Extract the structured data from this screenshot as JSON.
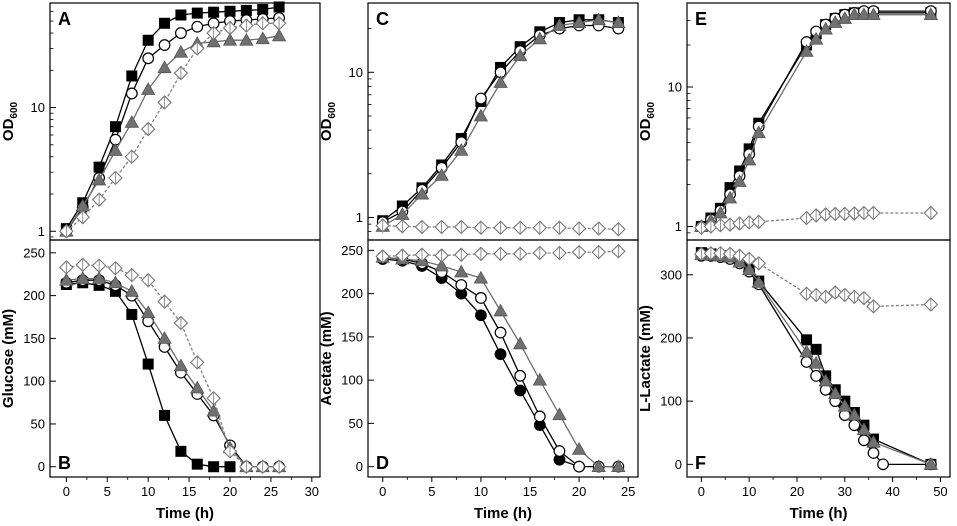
{
  "chart_data": [
    {
      "type": "line",
      "panel": "A",
      "yscale": "log",
      "ylabel": "OD",
      "ylabel_sub": "600",
      "xlim": [
        -2,
        31
      ],
      "ylim": [
        0.85,
        70
      ],
      "yticks": [
        1,
        10
      ],
      "ytick_labels": [
        "1",
        "10"
      ],
      "series": [
        {
          "name": "filled square",
          "marker": "square-filled",
          "x": [
            0,
            2,
            4,
            6,
            8,
            10,
            12,
            14,
            16,
            18,
            20,
            22,
            24,
            26
          ],
          "y": [
            1.05,
            1.7,
            3.3,
            7.0,
            18,
            35,
            48,
            56,
            58,
            59,
            60,
            61,
            62,
            65
          ]
        },
        {
          "name": "open circle",
          "marker": "circle-open",
          "x": [
            0,
            2,
            4,
            6,
            8,
            10,
            12,
            14,
            16,
            18,
            20,
            22,
            24,
            26
          ],
          "y": [
            1.0,
            1.55,
            2.7,
            5.5,
            13,
            25,
            32,
            40,
            45,
            48,
            50,
            51,
            52,
            53
          ]
        },
        {
          "name": "gray triangle",
          "marker": "triangle-gray",
          "x": [
            0,
            2,
            4,
            6,
            8,
            10,
            12,
            14,
            16,
            18,
            20,
            22,
            24,
            26
          ],
          "y": [
            1.0,
            1.6,
            2.6,
            4.5,
            7.6,
            14,
            21,
            28,
            33,
            34,
            35,
            35,
            36,
            38
          ]
        },
        {
          "name": "open diamond",
          "marker": "diamond-open",
          "x": [
            0,
            2,
            4,
            6,
            8,
            10,
            12,
            14,
            16,
            18,
            20,
            22,
            24,
            26
          ],
          "y": [
            1.0,
            1.3,
            1.8,
            2.7,
            4.0,
            6.7,
            11,
            19,
            30,
            40,
            44,
            46,
            48,
            48
          ]
        }
      ]
    },
    {
      "type": "line",
      "panel": "B",
      "ylabel": "Glucose (mM)",
      "xlabel": "Time (h)",
      "xlim": [
        -2,
        31
      ],
      "ylim": [
        -12,
        265
      ],
      "yticks": [
        0,
        50,
        100,
        150,
        200,
        250
      ],
      "ytick_labels": [
        "0",
        "50",
        "100",
        "150",
        "200",
        "250"
      ],
      "xticks": [
        0,
        5,
        10,
        15,
        20,
        25,
        30
      ],
      "xtick_labels": [
        "0",
        "5",
        "10",
        "15",
        "20",
        "25",
        "30"
      ],
      "series": [
        {
          "name": "filled square",
          "marker": "square-filled",
          "x": [
            0,
            2,
            4,
            6,
            8,
            10,
            12,
            14,
            16,
            18,
            20
          ],
          "y": [
            213,
            215,
            212,
            205,
            178,
            120,
            60,
            18,
            3,
            0,
            0
          ]
        },
        {
          "name": "open circle",
          "marker": "circle-open",
          "x": [
            0,
            2,
            4,
            6,
            8,
            10,
            12,
            14,
            16,
            18,
            20,
            22,
            24,
            26
          ],
          "y": [
            215,
            218,
            218,
            212,
            200,
            170,
            140,
            110,
            85,
            60,
            25,
            0,
            0,
            0
          ]
        },
        {
          "name": "gray triangle",
          "marker": "triangle-gray",
          "x": [
            0,
            2,
            4,
            6,
            8,
            10,
            12,
            14,
            16,
            18,
            20,
            22,
            24,
            26
          ],
          "y": [
            218,
            220,
            220,
            215,
            205,
            180,
            150,
            118,
            92,
            65,
            22,
            0,
            0,
            0
          ]
        },
        {
          "name": "open diamond",
          "marker": "diamond-open",
          "x": [
            0,
            2,
            4,
            6,
            8,
            10,
            12,
            14,
            16,
            18,
            20,
            22,
            24,
            26
          ],
          "y": [
            233,
            236,
            235,
            232,
            224,
            218,
            193,
            168,
            122,
            80,
            18,
            0,
            0,
            0
          ]
        }
      ]
    },
    {
      "type": "line",
      "panel": "C",
      "yscale": "log",
      "ylabel": "OD",
      "ylabel_sub": "600",
      "xlim": [
        -1.5,
        26
      ],
      "ylim": [
        0.7,
        30
      ],
      "yticks": [
        1,
        10
      ],
      "ytick_labels": [
        "1",
        "10"
      ],
      "series": [
        {
          "name": "filled square",
          "marker": "square-filled",
          "x": [
            0,
            2,
            4,
            6,
            8,
            10,
            12,
            14,
            16,
            18,
            20,
            22,
            24
          ],
          "y": [
            0.95,
            1.2,
            1.6,
            2.3,
            3.5,
            6.3,
            10.8,
            15,
            19,
            22,
            23,
            23,
            22
          ]
        },
        {
          "name": "open circle",
          "marker": "circle-open",
          "x": [
            0,
            2,
            4,
            6,
            8,
            10,
            12,
            14,
            16,
            18,
            20,
            22,
            24
          ],
          "y": [
            0.93,
            1.1,
            1.55,
            2.2,
            3.3,
            6.6,
            10,
            14,
            18,
            20,
            21,
            21,
            20
          ]
        },
        {
          "name": "gray triangle",
          "marker": "triangle-gray",
          "x": [
            0,
            2,
            4,
            6,
            8,
            10,
            12,
            14,
            16,
            18,
            20,
            22,
            24
          ],
          "y": [
            0.87,
            1.05,
            1.45,
            1.95,
            2.9,
            5.0,
            8.5,
            13,
            17,
            21,
            22,
            23,
            22
          ]
        },
        {
          "name": "open diamond",
          "marker": "diamond-open",
          "x": [
            0,
            2,
            4,
            6,
            8,
            10,
            12,
            14,
            16,
            18,
            20,
            22,
            24
          ],
          "y": [
            0.88,
            0.87,
            0.86,
            0.86,
            0.86,
            0.85,
            0.85,
            0.85,
            0.85,
            0.85,
            0.84,
            0.84,
            0.83
          ]
        }
      ]
    },
    {
      "type": "line",
      "panel": "D",
      "ylabel": "Acetate (mM)",
      "xlabel": "Time (h)",
      "xlim": [
        -1.5,
        26
      ],
      "ylim": [
        -12,
        262
      ],
      "yticks": [
        0,
        50,
        100,
        150,
        200,
        250
      ],
      "ytick_labels": [
        "0",
        "50",
        "100",
        "150",
        "200",
        "250"
      ],
      "xticks": [
        0,
        5,
        10,
        15,
        20,
        25
      ],
      "xtick_labels": [
        "0",
        "5",
        "10",
        "15",
        "20",
        "25"
      ],
      "series": [
        {
          "name": "filled circle",
          "marker": "circle-filled",
          "x": [
            0,
            2,
            4,
            6,
            8,
            10,
            12,
            14,
            16,
            18,
            20
          ],
          "y": [
            240,
            238,
            232,
            218,
            200,
            175,
            130,
            88,
            48,
            8,
            0
          ]
        },
        {
          "name": "open circle",
          "marker": "circle-open",
          "x": [
            0,
            2,
            4,
            6,
            8,
            10,
            12,
            14,
            16,
            18,
            20,
            22,
            24
          ],
          "y": [
            242,
            240,
            235,
            225,
            210,
            195,
            155,
            105,
            58,
            18,
            0,
            0,
            0
          ]
        },
        {
          "name": "gray triangle",
          "marker": "triangle-gray",
          "x": [
            0,
            2,
            4,
            6,
            8,
            10,
            12,
            14,
            16,
            18,
            20,
            22,
            24
          ],
          "y": [
            242,
            240,
            238,
            232,
            225,
            218,
            180,
            142,
            100,
            60,
            20,
            0,
            0
          ]
        },
        {
          "name": "open diamond",
          "marker": "diamond-open",
          "x": [
            0,
            2,
            4,
            6,
            8,
            10,
            12,
            14,
            16,
            18,
            20,
            22,
            24
          ],
          "y": [
            243,
            244,
            245,
            244,
            245,
            246,
            246,
            246,
            247,
            247,
            248,
            248,
            249
          ]
        }
      ]
    },
    {
      "type": "line",
      "panel": "E",
      "yscale": "log",
      "ylabel": "OD",
      "ylabel_sub": "600",
      "xlim": [
        -3,
        52
      ],
      "ylim": [
        0.8,
        40
      ],
      "yticks": [
        1,
        10
      ],
      "ytick_labels": [
        "1",
        "10"
      ],
      "series": [
        {
          "name": "filled square",
          "marker": "square-filled",
          "x": [
            0,
            2,
            4,
            6,
            8,
            10,
            12,
            22,
            24,
            26,
            28,
            30,
            32,
            34,
            36,
            48
          ],
          "y": [
            1.0,
            1.15,
            1.35,
            1.9,
            2.5,
            3.6,
            5.5,
            20,
            24,
            28,
            31,
            33,
            34,
            34,
            34,
            34
          ]
        },
        {
          "name": "open circle",
          "marker": "circle-open",
          "x": [
            0,
            2,
            4,
            6,
            8,
            10,
            12,
            22,
            24,
            26,
            28,
            30,
            32,
            34,
            36,
            48
          ],
          "y": [
            1.0,
            1.12,
            1.3,
            1.7,
            2.3,
            3.3,
            5.2,
            21,
            25,
            28,
            31,
            33,
            34,
            35,
            35,
            35
          ]
        },
        {
          "name": "gray triangle",
          "marker": "triangle-gray",
          "x": [
            0,
            2,
            4,
            6,
            8,
            10,
            12,
            22,
            24,
            26,
            28,
            30,
            32,
            34,
            36,
            48
          ],
          "y": [
            1.0,
            1.1,
            1.25,
            1.6,
            2.1,
            3.0,
            4.7,
            18,
            22,
            26,
            29,
            31,
            33,
            33,
            33,
            33
          ]
        },
        {
          "name": "open diamond",
          "marker": "diamond-open",
          "x": [
            0,
            2,
            4,
            6,
            8,
            10,
            12,
            22,
            24,
            26,
            28,
            30,
            32,
            34,
            36,
            48
          ],
          "y": [
            0.98,
            1.0,
            1.02,
            1.03,
            1.05,
            1.07,
            1.08,
            1.15,
            1.2,
            1.22,
            1.23,
            1.23,
            1.24,
            1.25,
            1.25,
            1.25
          ]
        }
      ]
    },
    {
      "type": "line",
      "panel": "F",
      "ylabel": "L-Lactate (mM)",
      "xlabel": "Time (h)",
      "xlim": [
        -3,
        52
      ],
      "ylim": [
        -20,
        355
      ],
      "yticks": [
        0,
        100,
        200,
        300
      ],
      "ytick_labels": [
        "0",
        "100",
        "200",
        "300"
      ],
      "xticks": [
        0,
        10,
        20,
        30,
        40,
        50
      ],
      "xtick_labels": [
        "0",
        "10",
        "20",
        "30",
        "40",
        "50"
      ],
      "series": [
        {
          "name": "filled square",
          "marker": "square-filled",
          "x": [
            0,
            2,
            4,
            6,
            8,
            10,
            12,
            22,
            24,
            26,
            28,
            30,
            32,
            34,
            36,
            48
          ],
          "y": [
            335,
            333,
            330,
            328,
            322,
            312,
            290,
            197,
            182,
            140,
            118,
            100,
            82,
            62,
            40,
            0
          ]
        },
        {
          "name": "open circle",
          "marker": "circle-open",
          "x": [
            0,
            2,
            4,
            6,
            8,
            10,
            12,
            22,
            24,
            26,
            28,
            30,
            32,
            34,
            36,
            38,
            48
          ],
          "y": [
            330,
            330,
            328,
            325,
            318,
            305,
            285,
            162,
            140,
            118,
            100,
            78,
            62,
            38,
            18,
            0,
            0
          ]
        },
        {
          "name": "gray triangle",
          "marker": "triangle-gray",
          "x": [
            0,
            2,
            4,
            6,
            8,
            10,
            12,
            22,
            24,
            26,
            28,
            30,
            32,
            34,
            36,
            48
          ],
          "y": [
            332,
            331,
            330,
            328,
            320,
            308,
            288,
            178,
            160,
            132,
            112,
            92,
            78,
            55,
            35,
            0
          ]
        },
        {
          "name": "open diamond",
          "marker": "diamond-open",
          "x": [
            0,
            2,
            4,
            6,
            8,
            10,
            12,
            22,
            24,
            26,
            28,
            30,
            32,
            34,
            36,
            48
          ],
          "y": [
            333,
            334,
            334,
            333,
            330,
            325,
            318,
            270,
            268,
            265,
            272,
            268,
            265,
            263,
            250,
            253
          ]
        }
      ]
    }
  ]
}
